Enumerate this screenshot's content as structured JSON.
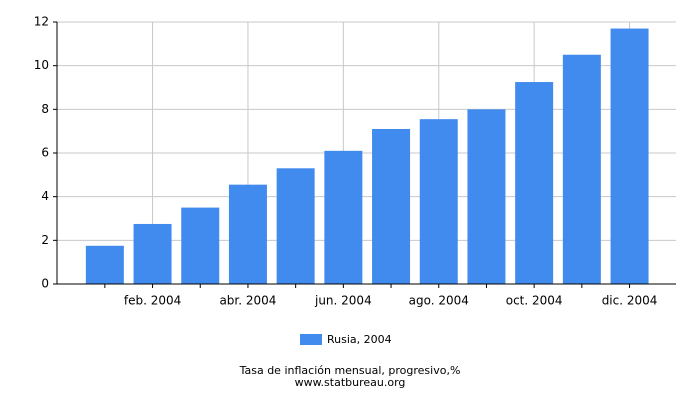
{
  "chart_data": {
    "type": "bar",
    "title": "Tasa de inflación mensual, progresivo,%",
    "source": "www.statbureau.org",
    "categories": [
      null,
      "feb. 2004",
      null,
      "abr. 2004",
      null,
      "jun. 2004",
      null,
      "ago. 2004",
      null,
      "oct. 2004",
      null,
      "dic. 2004"
    ],
    "series": [
      {
        "name": "Rusia, 2004",
        "color": "#428bee",
        "values": [
          1.75,
          2.75,
          3.5,
          4.55,
          5.3,
          6.1,
          7.1,
          7.55,
          8.0,
          9.25,
          10.5,
          11.7
        ]
      }
    ],
    "ylim": [
      0,
      12
    ],
    "yticks": [
      0,
      2,
      4,
      6,
      8,
      10,
      12
    ],
    "grid": true,
    "legend": "bottom"
  }
}
